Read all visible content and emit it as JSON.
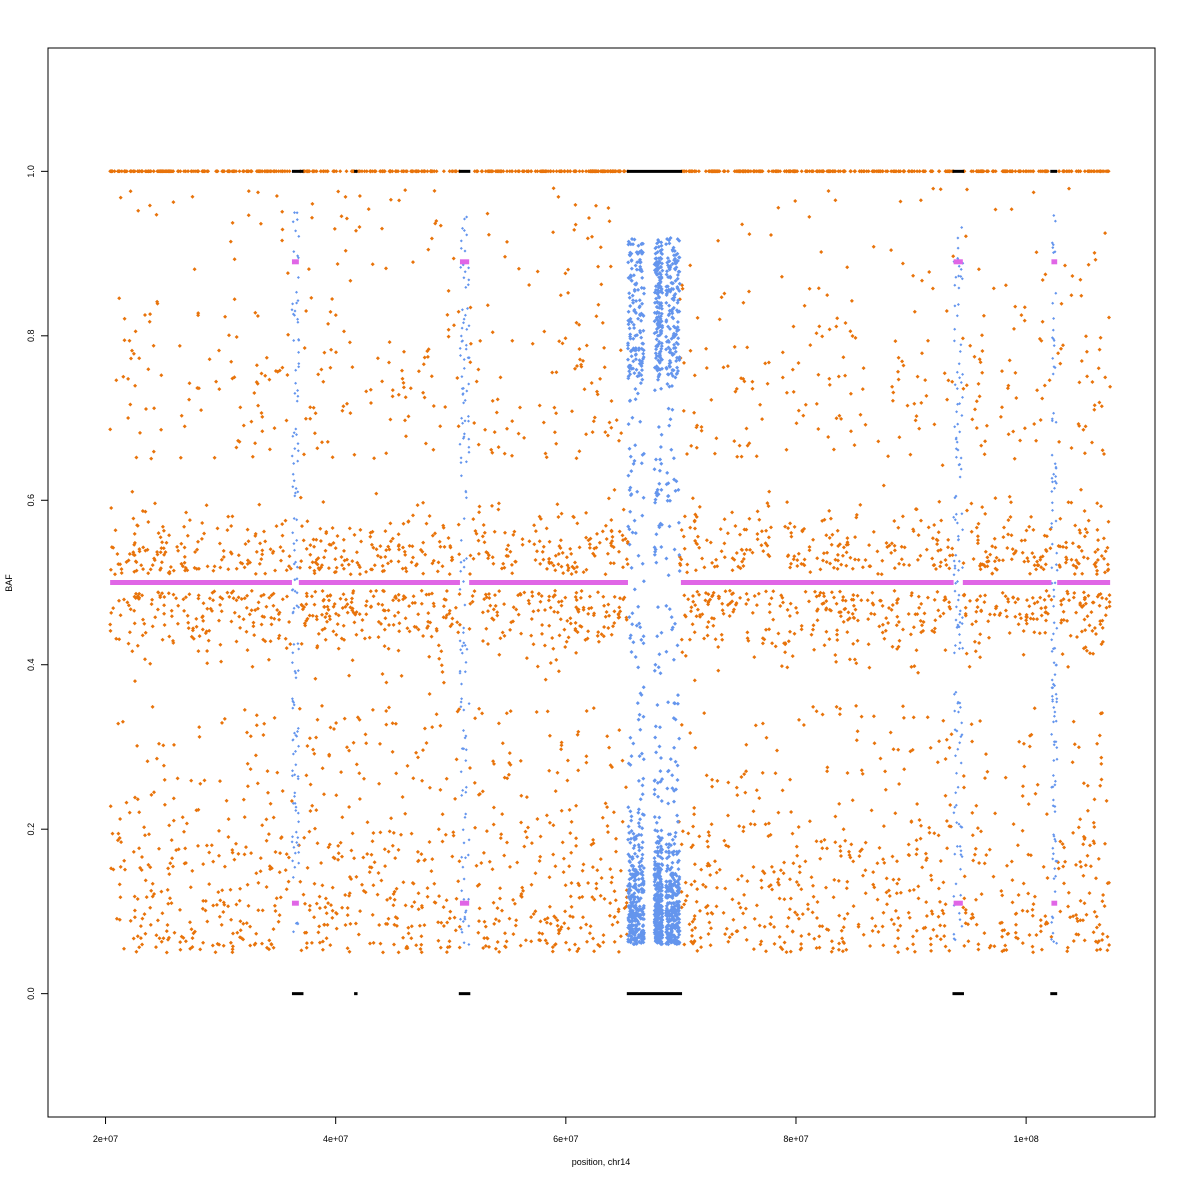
{
  "chart_data": {
    "type": "scatter",
    "title": "",
    "xlabel": "position, chr14",
    "ylabel": "BAF",
    "xlim": [
      15000000,
      111200000
    ],
    "ylim": [
      -0.15,
      1.15
    ],
    "x_ticks": [
      {
        "value": 20000000,
        "label": "2e+07"
      },
      {
        "value": 40000000,
        "label": "4e+07"
      },
      {
        "value": 60000000,
        "label": "6e+07"
      },
      {
        "value": 80000000,
        "label": "8e+07"
      },
      {
        "value": 100000000,
        "label": "1e+08"
      }
    ],
    "y_ticks": [
      {
        "value": 0.0,
        "label": "0.0"
      },
      {
        "value": 0.2,
        "label": "0.2"
      },
      {
        "value": 0.4,
        "label": "0.4"
      },
      {
        "value": 0.6,
        "label": "0.6"
      },
      {
        "value": 0.8,
        "label": "0.8"
      },
      {
        "value": 1.0,
        "label": "1.0"
      }
    ],
    "grid": false,
    "legend": "none",
    "colors": {
      "heterozygous": "#e8730a",
      "low_quality": "#6495ed",
      "homozygous": "#000000",
      "segment_mean": "#e066e6"
    },
    "data_range": [
      20400000,
      107300000
    ],
    "centromere_gap": [
      65400000,
      69800000
    ],
    "homozygous_runs": [
      {
        "start": 36200000,
        "end": 37200000
      },
      {
        "start": 41600000,
        "end": 41900000
      },
      {
        "start": 50700000,
        "end": 51700000
      },
      {
        "start": 65300000,
        "end": 70100000
      },
      {
        "start": 93600000,
        "end": 94600000
      },
      {
        "start": 102100000,
        "end": 102700000
      }
    ],
    "segments": [
      {
        "start": 20400000,
        "end": 36200000,
        "baf": [
          0.5
        ]
      },
      {
        "start": 36200000,
        "end": 36800000,
        "baf": [
          0.11,
          0.89
        ]
      },
      {
        "start": 36800000,
        "end": 50800000,
        "baf": [
          0.5
        ]
      },
      {
        "start": 50800000,
        "end": 51600000,
        "baf": [
          0.11,
          0.89
        ]
      },
      {
        "start": 51600000,
        "end": 65400000,
        "baf": [
          0.5
        ]
      },
      {
        "start": 70000000,
        "end": 93700000,
        "baf": [
          0.5
        ]
      },
      {
        "start": 93700000,
        "end": 94500000,
        "baf": [
          0.11,
          0.89
        ]
      },
      {
        "start": 94500000,
        "end": 102200000,
        "baf": [
          0.5
        ]
      },
      {
        "start": 102200000,
        "end": 102700000,
        "baf": [
          0.11,
          0.89
        ]
      },
      {
        "start": 102700000,
        "end": 107300000,
        "baf": [
          0.5
        ]
      }
    ],
    "low_quality_columns": [
      {
        "start": 65400000,
        "end": 66800000
      },
      {
        "start": 67700000,
        "end": 68400000
      },
      {
        "start": 68700000,
        "end": 69900000
      }
    ]
  }
}
